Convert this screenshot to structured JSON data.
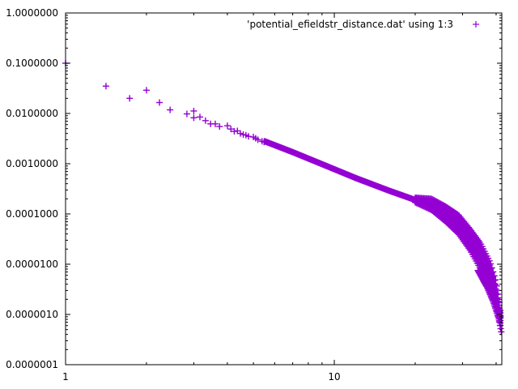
{
  "chart_data": {
    "type": "scatter",
    "legend": {
      "label": "'potential_efieldstr_distance.dat' using 1:3",
      "placement": "top-right"
    },
    "x_axis": {
      "scale": "log",
      "range": [
        1,
        42
      ],
      "tick_values": [
        1,
        10
      ],
      "tick_labels": [
        "1",
        "10"
      ]
    },
    "y_axis": {
      "scale": "log",
      "range": [
        1e-07,
        1
      ],
      "tick_values": [
        1e-07,
        1e-06,
        1e-05,
        0.0001,
        0.001,
        0.01,
        0.1,
        1
      ],
      "tick_labels": [
        "0.0000001",
        "0.0000010",
        "0.0000100",
        "0.0001000",
        "0.0010000",
        "0.0100000",
        "0.1000000",
        "1.0000000"
      ]
    },
    "grid": false,
    "marker": "+",
    "series_color": "#9400d3",
    "sparse_points": [
      [
        1.0,
        0.1
      ],
      [
        1.414,
        0.035
      ],
      [
        1.732,
        0.02
      ],
      [
        2.0,
        0.029
      ],
      [
        2.236,
        0.0165
      ],
      [
        2.449,
        0.0118
      ],
      [
        2.828,
        0.0098
      ],
      [
        3.0,
        0.0082
      ],
      [
        3.0,
        0.0112
      ],
      [
        3.162,
        0.0085
      ],
      [
        3.317,
        0.0072
      ],
      [
        3.464,
        0.0062
      ],
      [
        3.606,
        0.0062
      ],
      [
        3.742,
        0.0055
      ],
      [
        4.0,
        0.0057
      ],
      [
        4.123,
        0.0049
      ],
      [
        4.243,
        0.0044
      ],
      [
        4.359,
        0.0045
      ],
      [
        4.472,
        0.004
      ],
      [
        4.583,
        0.0038
      ],
      [
        4.69,
        0.0037
      ],
      [
        4.796,
        0.0035
      ],
      [
        5.0,
        0.0034
      ],
      [
        5.099,
        0.0032
      ],
      [
        5.196,
        0.003
      ],
      [
        5.385,
        0.0028
      ],
      [
        5.477,
        0.0027
      ]
    ],
    "main_trend": [
      [
        5.5,
        0.0028
      ],
      [
        7.0,
        0.0017
      ],
      [
        9.0,
        0.00098
      ],
      [
        12.0,
        0.00052
      ],
      [
        16.0,
        0.00029
      ],
      [
        20.0,
        0.00019
      ],
      [
        23.0,
        0.00016
      ],
      [
        26.0,
        0.00011
      ],
      [
        29.0,
        7e-05
      ],
      [
        32.0,
        3.8e-05
      ],
      [
        35.0,
        1.8e-05
      ],
      [
        38.0,
        6.5e-06
      ],
      [
        40.0,
        2.5e-06
      ],
      [
        41.5,
        9e-07
      ]
    ],
    "band_upper": [
      [
        20.0,
        0.00021
      ],
      [
        23.0,
        0.0002
      ],
      [
        26.0,
        0.00014
      ],
      [
        29.0,
        9.5e-05
      ],
      [
        32.0,
        5e-05
      ],
      [
        35.0,
        2.6e-05
      ],
      [
        38.0,
        1.1e-05
      ],
      [
        40.0,
        4.5e-06
      ],
      [
        41.5,
        1.2e-06
      ]
    ],
    "band_lower": [
      [
        20.0,
        0.00017
      ],
      [
        23.0,
        0.00012
      ],
      [
        26.0,
        7e-05
      ],
      [
        29.0,
        4e-05
      ],
      [
        32.0,
        1.9e-05
      ],
      [
        35.0,
        8e-06
      ],
      [
        38.0,
        3e-06
      ],
      [
        40.0,
        1.3e-06
      ],
      [
        41.5,
        6e-07
      ]
    ],
    "branch_points": [
      [
        34.2,
        7.5e-06
      ],
      [
        35.0,
        6e-06
      ],
      [
        36.0,
        4.5e-06
      ],
      [
        37.0,
        3.5e-06
      ],
      [
        38.0,
        2.5e-06
      ],
      [
        39.0,
        1.8e-06
      ],
      [
        40.0,
        1.2e-06
      ],
      [
        41.0,
        8e-07
      ],
      [
        41.8,
        4.5e-07
      ]
    ]
  }
}
